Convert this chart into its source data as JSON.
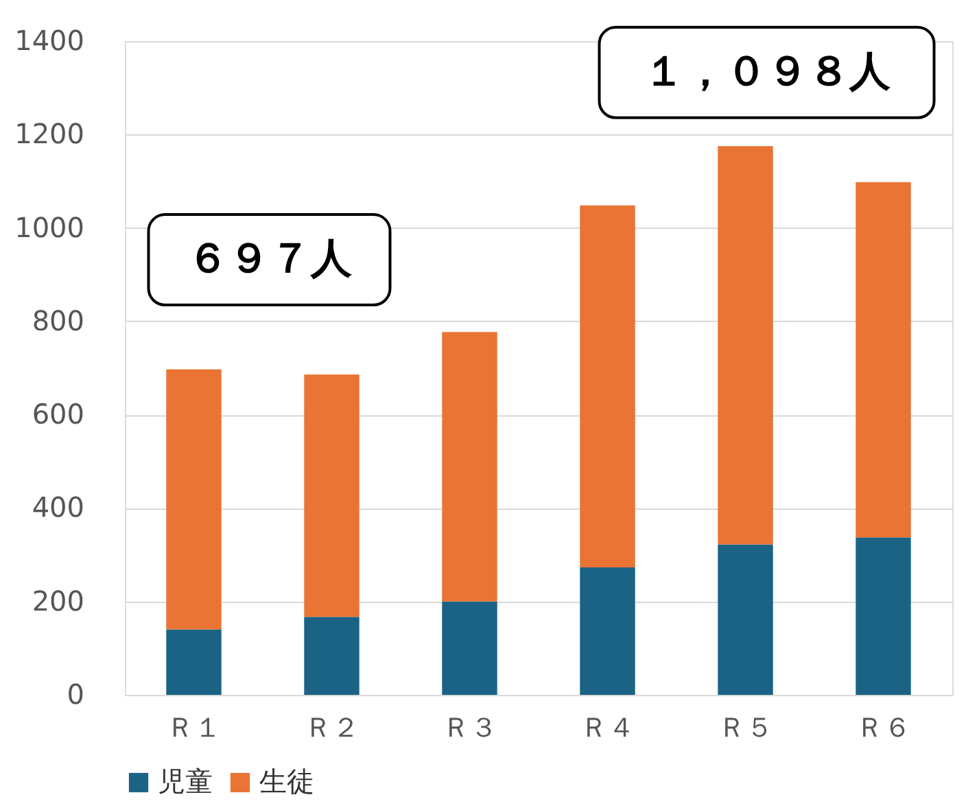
{
  "chart_data": {
    "type": "bar",
    "stacked": true,
    "categories": [
      "Ｒ１",
      "Ｒ２",
      "Ｒ３",
      "Ｒ４",
      "Ｒ５",
      "Ｒ６"
    ],
    "series": [
      {
        "name": "児童",
        "color": "#1a6385",
        "values": [
          140,
          167,
          200,
          273,
          322,
          337
        ]
      },
      {
        "name": "生徒",
        "color": "#e97434",
        "values": [
          557,
          519,
          577,
          775,
          853,
          761
        ]
      }
    ],
    "ylim": [
      0,
      1400
    ],
    "yticks": [
      0,
      200,
      400,
      600,
      800,
      1000,
      1200,
      1400
    ],
    "grid": "y",
    "legend": "bottom",
    "annotations": [
      {
        "text": "６９７人",
        "x": "Ｒ１",
        "y": 697
      },
      {
        "text": "１，０９８人",
        "x": "Ｒ６",
        "y": 1098
      }
    ]
  }
}
